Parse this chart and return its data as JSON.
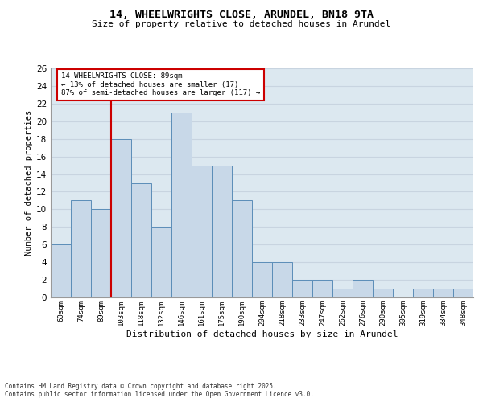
{
  "title1": "14, WHEELWRIGHTS CLOSE, ARUNDEL, BN18 9TA",
  "title2": "Size of property relative to detached houses in Arundel",
  "xlabel": "Distribution of detached houses by size in Arundel",
  "ylabel": "Number of detached properties",
  "categories": [
    "60sqm",
    "74sqm",
    "89sqm",
    "103sqm",
    "118sqm",
    "132sqm",
    "146sqm",
    "161sqm",
    "175sqm",
    "190sqm",
    "204sqm",
    "218sqm",
    "233sqm",
    "247sqm",
    "262sqm",
    "276sqm",
    "290sqm",
    "305sqm",
    "319sqm",
    "334sqm",
    "348sqm"
  ],
  "values": [
    6,
    11,
    10,
    18,
    13,
    8,
    21,
    15,
    15,
    11,
    4,
    4,
    2,
    2,
    1,
    2,
    1,
    0,
    1,
    1,
    1
  ],
  "bar_color": "#c8d8e8",
  "bar_edge_color": "#5b8db8",
  "vline_color": "#cc0000",
  "vline_xindex": 2,
  "annotation_text": "14 WHEELWRIGHTS CLOSE: 89sqm\n← 13% of detached houses are smaller (17)\n87% of semi-detached houses are larger (117) →",
  "annotation_box_color": "#cc0000",
  "ylim": [
    0,
    26
  ],
  "yticks": [
    0,
    2,
    4,
    6,
    8,
    10,
    12,
    14,
    16,
    18,
    20,
    22,
    24,
    26
  ],
  "grid_color": "#c8d4e0",
  "background_color": "#dce8f0",
  "footer1": "Contains HM Land Registry data © Crown copyright and database right 2025.",
  "footer2": "Contains public sector information licensed under the Open Government Licence v3.0."
}
